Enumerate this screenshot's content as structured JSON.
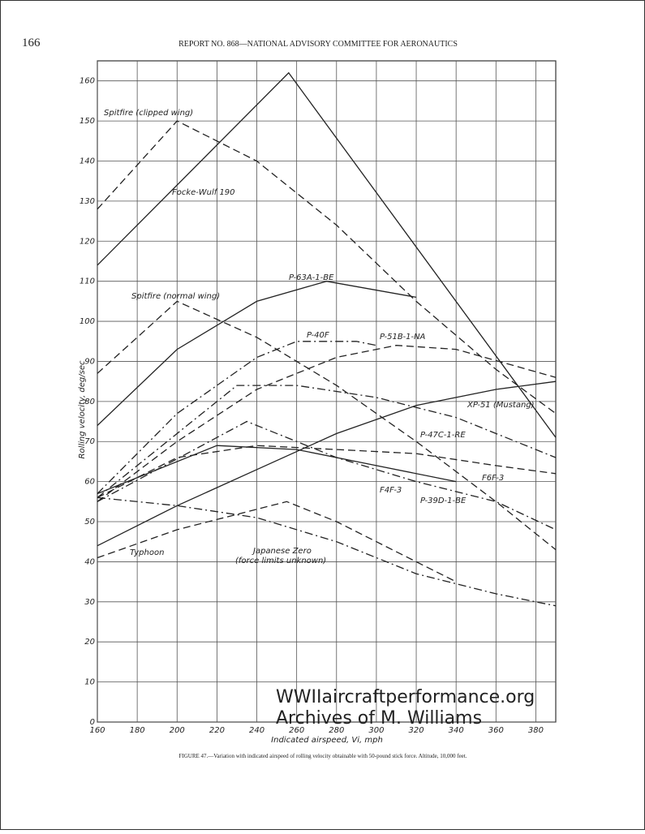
{
  "page_number": "166",
  "header": "REPORT NO. 868—NATIONAL ADVISORY COMMITTEE FOR AERONAUTICS",
  "caption": "FIGURE 47.—Variation with indicated airspeed of rolling velocity obtainable with 50-pound stick force. Altitude, 10,000 feet.",
  "watermark": [
    "WWIIaircraftperformance.org",
    "Archives of M. Williams"
  ],
  "chart_data": {
    "type": "line",
    "xlabel": "Indicated airspeed, Vi, mph",
    "ylabel": "Rolling velocity, deg/sec",
    "xlim": [
      160,
      390
    ],
    "ylim": [
      0,
      165
    ],
    "xticks": [
      160,
      180,
      200,
      220,
      240,
      260,
      280,
      300,
      320,
      340,
      360,
      380
    ],
    "yticks": [
      0,
      10,
      20,
      30,
      40,
      50,
      60,
      70,
      80,
      90,
      100,
      110,
      120,
      130,
      140,
      150,
      160
    ],
    "grid": true,
    "annotation": "(force limits unknown)",
    "series": [
      {
        "name": "Spitfire (clipped wing)",
        "color": "#222",
        "dash": "dashed",
        "x": [
          160,
          200,
          240,
          280,
          320,
          360,
          390
        ],
        "values": [
          128,
          150,
          140,
          124,
          105,
          88,
          77
        ]
      },
      {
        "name": "Focke-Wulf 190",
        "color": "#222",
        "dash": "solid",
        "x": [
          160,
          256,
          390
        ],
        "values": [
          114,
          162,
          71
        ]
      },
      {
        "name": "Spitfire (normal wing)",
        "color": "#222",
        "dash": "dashed",
        "x": [
          160,
          200,
          240,
          280,
          320,
          360,
          390
        ],
        "values": [
          87,
          105,
          96,
          84,
          70,
          55,
          43
        ]
      },
      {
        "name": "P-63A-1-BE",
        "color": "#222",
        "dash": "solid",
        "x": [
          160,
          200,
          240,
          275,
          320
        ],
        "values": [
          74,
          93,
          105,
          110,
          106
        ]
      },
      {
        "name": "P-40F",
        "color": "#222",
        "dash": "dashdot",
        "x": [
          160,
          200,
          240,
          260,
          290,
          300
        ],
        "values": [
          57,
          77,
          91,
          95,
          95,
          94
        ]
      },
      {
        "name": "P-51B-1-NA",
        "color": "#222",
        "dash": "dashed",
        "x": [
          160,
          200,
          240,
          280,
          310,
          340,
          390
        ],
        "values": [
          55,
          70,
          83,
          91,
          94,
          93,
          86
        ]
      },
      {
        "name": "XP-51 (Mustang)",
        "color": "#222",
        "dash": "dashdot",
        "x": [
          160,
          230,
          260,
          300,
          340,
          390
        ],
        "values": [
          56,
          84,
          84,
          81,
          76,
          66
        ]
      },
      {
        "name": "P-47C-1-RE",
        "color": "#222",
        "dash": "solid",
        "x": [
          160,
          200,
          240,
          280,
          320,
          360,
          390
        ],
        "values": [
          44,
          54,
          63,
          72,
          79,
          83,
          85
        ]
      },
      {
        "name": "F6F-3",
        "color": "#222",
        "dash": "dashed",
        "x": [
          160,
          200,
          240,
          280,
          320,
          360,
          390
        ],
        "values": [
          56,
          66,
          69,
          68,
          67,
          64,
          62
        ]
      },
      {
        "name": "F4F-3",
        "color": "#222",
        "dash": "solid",
        "x": [
          160,
          220,
          260,
          300,
          340
        ],
        "values": [
          57,
          69,
          68,
          64,
          60
        ]
      },
      {
        "name": "P-39D-1-BE",
        "color": "#222",
        "dash": "dashdot",
        "x": [
          160,
          235,
          280,
          320,
          360,
          390
        ],
        "values": [
          55,
          75,
          66,
          60,
          55,
          48
        ]
      },
      {
        "name": "Japanese Zero",
        "color": "#222",
        "dash": "dashdot",
        "x": [
          160,
          200,
          240,
          280,
          320,
          360,
          390
        ],
        "values": [
          56,
          54,
          51,
          45,
          37,
          32,
          29
        ]
      },
      {
        "name": "Typhoon",
        "color": "#222",
        "dash": "dashed",
        "x": [
          160,
          200,
          255,
          280,
          320,
          340
        ],
        "values": [
          41,
          48,
          55,
          50,
          40,
          35
        ]
      }
    ]
  }
}
